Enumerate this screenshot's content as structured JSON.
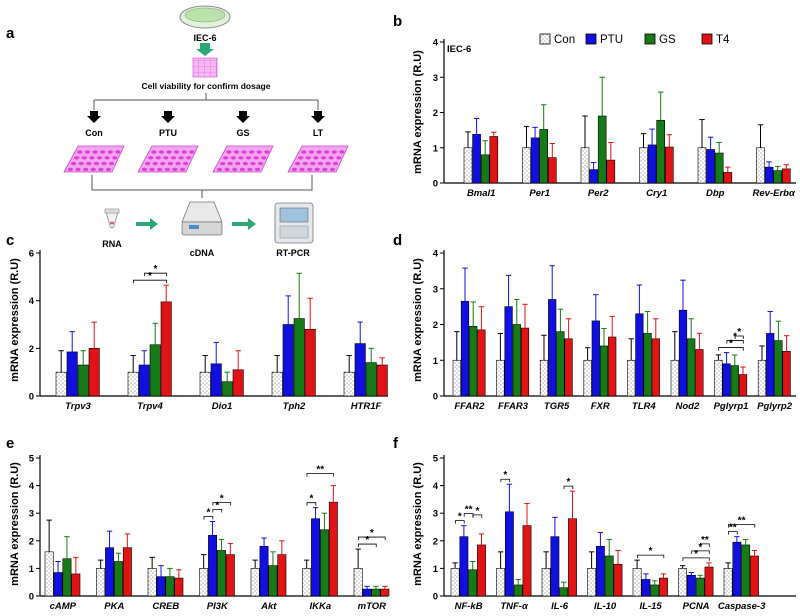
{
  "colors": {
    "con": "#ffffff",
    "ptu": "#1010e0",
    "gs": "#167a16",
    "t4": "#e01414",
    "arrow": "#2aa876",
    "dish": "#ee55dd",
    "plate": "#f07aee"
  },
  "legend": [
    "Con",
    "PTU",
    "GS",
    "T4"
  ],
  "schematic": {
    "panel_label": "a",
    "cell_line": "IEC-6",
    "step_title": "Cell viability for confirm dosage",
    "groups": [
      "Con",
      "PTU",
      "GS",
      "LT"
    ],
    "pipeline": [
      "RNA",
      "cDNA",
      "RT-PCR"
    ]
  },
  "chart_data": [
    {
      "id": "b",
      "label": "b",
      "type": "bar",
      "ylabel": "mRNA expression (R.U)",
      "ylim": [
        0,
        4
      ],
      "yticks": [
        0,
        1,
        2,
        3,
        4
      ],
      "title": "IEC-6",
      "categories": [
        "Bmal1",
        "Per1",
        "Per2",
        "Cry1",
        "Dbp",
        "Rev-Erbα"
      ],
      "series": [
        {
          "name": "Con",
          "values": [
            1.0,
            1.0,
            1.0,
            1.0,
            1.0,
            1.0
          ],
          "err": [
            0.45,
            0.6,
            0.9,
            0.4,
            0.8,
            0.65
          ]
        },
        {
          "name": "PTU",
          "values": [
            1.38,
            1.28,
            0.38,
            1.08,
            0.95,
            0.45
          ],
          "err": [
            0.45,
            0.3,
            0.2,
            0.45,
            0.35,
            0.15
          ]
        },
        {
          "name": "GS",
          "values": [
            0.8,
            1.52,
            1.9,
            1.78,
            0.85,
            0.35
          ],
          "err": [
            0.4,
            0.7,
            1.1,
            0.8,
            0.3,
            0.12
          ]
        },
        {
          "name": "T4",
          "values": [
            1.32,
            0.72,
            0.65,
            1.02,
            0.3,
            0.4
          ],
          "err": [
            0.12,
            0.4,
            0.5,
            0.35,
            0.15,
            0.12
          ]
        }
      ],
      "sig": []
    },
    {
      "id": "c",
      "label": "c",
      "type": "bar",
      "ylabel": "mRNA expression (R.U)",
      "ylim": [
        0,
        6
      ],
      "yticks": [
        0,
        2,
        4,
        6
      ],
      "categories": [
        "Trpv3",
        "Trpv4",
        "Dio1",
        "Tph2",
        "HTR1F"
      ],
      "series": [
        {
          "name": "Con",
          "values": [
            1.0,
            1.0,
            1.0,
            1.0,
            1.0
          ],
          "err": [
            0.9,
            0.7,
            0.7,
            0.7,
            0.7
          ]
        },
        {
          "name": "PTU",
          "values": [
            1.85,
            1.3,
            1.35,
            3.0,
            2.2
          ],
          "err": [
            0.85,
            0.6,
            0.9,
            1.2,
            0.9
          ]
        },
        {
          "name": "GS",
          "values": [
            1.3,
            2.15,
            0.6,
            3.25,
            1.4
          ],
          "err": [
            0.6,
            0.9,
            0.4,
            1.9,
            0.6
          ]
        },
        {
          "name": "T4",
          "values": [
            2.0,
            3.95,
            1.1,
            2.8,
            1.3
          ],
          "err": [
            1.1,
            0.7,
            0.8,
            1.3,
            0.3
          ]
        }
      ],
      "sig": [
        {
          "cat": 1,
          "from": 0,
          "to": 3,
          "label": "*"
        },
        {
          "cat": 1,
          "from": 1,
          "to": 3,
          "label": "*"
        }
      ]
    },
    {
      "id": "d",
      "label": "d",
      "type": "bar",
      "ylabel": "mRNA expression (R.U)",
      "ylim": [
        0,
        4
      ],
      "yticks": [
        0,
        1,
        2,
        3,
        4
      ],
      "categories": [
        "FFAR2",
        "FFAR3",
        "TGR5",
        "FXR",
        "TLR4",
        "Nod2",
        "Pglyrp1",
        "Pglyrp2"
      ],
      "series": [
        {
          "name": "Con",
          "values": [
            1.0,
            1.0,
            1.0,
            1.0,
            1.0,
            1.0,
            1.0,
            1.0
          ],
          "err": [
            0.8,
            0.75,
            0.7,
            0.35,
            0.6,
            0.8,
            0.15,
            0.4
          ]
        },
        {
          "name": "PTU",
          "values": [
            2.65,
            2.5,
            2.7,
            2.1,
            2.3,
            2.4,
            0.9,
            1.75
          ]
        },
        {
          "name": "GS",
          "values": [
            1.95,
            2.0,
            1.8,
            1.4,
            1.75,
            1.6,
            0.85,
            1.55
          ]
        },
        {
          "name": "T4",
          "values": [
            1.85,
            1.9,
            1.6,
            1.65,
            1.6,
            1.3,
            0.6,
            1.25
          ]
        }
      ],
      "sig": [
        {
          "cat": 6,
          "from": 0,
          "to": 3,
          "label": "*"
        },
        {
          "cat": 6,
          "from": 1,
          "to": 3,
          "label": "*"
        },
        {
          "cat": 6,
          "from": 2,
          "to": 3,
          "label": "*"
        }
      ]
    },
    {
      "id": "e",
      "label": "e",
      "type": "bar",
      "ylabel": "mRNA expression (R.U)",
      "ylim": [
        0,
        5
      ],
      "yticks": [
        0,
        1,
        2,
        3,
        4,
        5
      ],
      "categories": [
        "cAMP",
        "PKA",
        "CREB",
        "PI3K",
        "Akt",
        "IKKa",
        "mTOR"
      ],
      "series": [
        {
          "name": "Con",
          "values": [
            1.6,
            1.0,
            1.0,
            1.0,
            1.0,
            1.0,
            1.0
          ],
          "err": [
            1.15,
            0.3,
            0.4,
            0.5,
            0.3,
            0.3,
            0.7
          ]
        },
        {
          "name": "PTU",
          "values": [
            0.85,
            1.75,
            0.7,
            2.2,
            1.8,
            2.8,
            0.25
          ],
          "err": [
            0.4,
            0.6,
            0.4,
            0.5,
            0.3,
            0.4,
            0.1
          ]
        },
        {
          "name": "GS",
          "values": [
            1.35,
            1.25,
            0.7,
            1.65,
            1.1,
            2.4,
            0.25
          ],
          "err": [
            0.8,
            0.3,
            0.3,
            0.4,
            0.5,
            0.6,
            0.1
          ]
        },
        {
          "name": "T4",
          "values": [
            0.8,
            1.75,
            0.65,
            1.5,
            1.5,
            3.4,
            0.25
          ],
          "err": [
            0.6,
            0.5,
            0.3,
            0.4,
            0.5,
            0.6,
            0.1
          ]
        }
      ],
      "sig": [
        {
          "cat": 3,
          "from": 0,
          "to": 1,
          "label": "*"
        },
        {
          "cat": 3,
          "from": 1,
          "to": 2,
          "label": "*"
        },
        {
          "cat": 3,
          "from": 1,
          "to": 3,
          "label": "*"
        },
        {
          "cat": 5,
          "from": 0,
          "to": 1,
          "label": "*"
        },
        {
          "cat": 5,
          "from": 0,
          "to": 3,
          "label": "**"
        },
        {
          "cat": 6,
          "from": 0,
          "to": 2,
          "label": "*"
        },
        {
          "cat": 6,
          "from": 0,
          "to": 3,
          "label": "*"
        }
      ]
    },
    {
      "id": "f",
      "label": "f",
      "type": "bar",
      "ylabel": "mRNA expression (R.U)",
      "ylim": [
        0,
        5
      ],
      "yticks": [
        0,
        1,
        2,
        3,
        4,
        5
      ],
      "categories": [
        "NF-kB",
        "TNF-α",
        "IL-6",
        "IL-10",
        "IL-15",
        "PCNA",
        "Caspase-3"
      ],
      "series": [
        {
          "name": "Con",
          "values": [
            1.0,
            1.0,
            1.0,
            1.0,
            1.0,
            1.0,
            1.0
          ],
          "err": [
            0.2,
            0.6,
            0.6,
            0.6,
            0.3,
            0.1,
            0.2
          ]
        },
        {
          "name": "PTU",
          "values": [
            2.15,
            3.05,
            2.15,
            1.8,
            0.6,
            0.75,
            1.95
          ],
          "err": [
            0.4,
            1.0,
            0.7,
            0.5,
            0.2,
            0.1,
            0.2
          ]
        },
        {
          "name": "GS",
          "values": [
            0.95,
            0.4,
            0.3,
            1.45,
            0.4,
            0.65,
            1.85
          ],
          "err": [
            0.3,
            0.2,
            0.2,
            0.6,
            0.15,
            0.1,
            0.2
          ]
        },
        {
          "name": "T4",
          "values": [
            1.85,
            2.55,
            2.8,
            1.15,
            0.65,
            1.05,
            1.45
          ],
          "err": [
            0.4,
            0.8,
            1.0,
            0.5,
            0.15,
            0.15,
            0.2
          ]
        }
      ],
      "sig": [
        {
          "cat": 0,
          "from": 0,
          "to": 1,
          "label": "*"
        },
        {
          "cat": 0,
          "from": 1,
          "to": 2,
          "label": "**"
        },
        {
          "cat": 0,
          "from": 2,
          "to": 3,
          "label": "*"
        },
        {
          "cat": 1,
          "from": 0,
          "to": 1,
          "label": "*"
        },
        {
          "cat": 2,
          "from": 2,
          "to": 3,
          "label": "*"
        },
        {
          "cat": 4,
          "from": 0,
          "to": 3,
          "label": "*"
        },
        {
          "cat": 5,
          "from": 0,
          "to": 3,
          "label": "*"
        },
        {
          "cat": 5,
          "from": 1,
          "to": 3,
          "label": "*"
        },
        {
          "cat": 5,
          "from": 2,
          "to": 3,
          "label": "**"
        },
        {
          "cat": 6,
          "from": 0,
          "to": 1,
          "label": "**"
        },
        {
          "cat": 6,
          "from": 0,
          "to": 3,
          "label": "**"
        }
      ]
    }
  ]
}
